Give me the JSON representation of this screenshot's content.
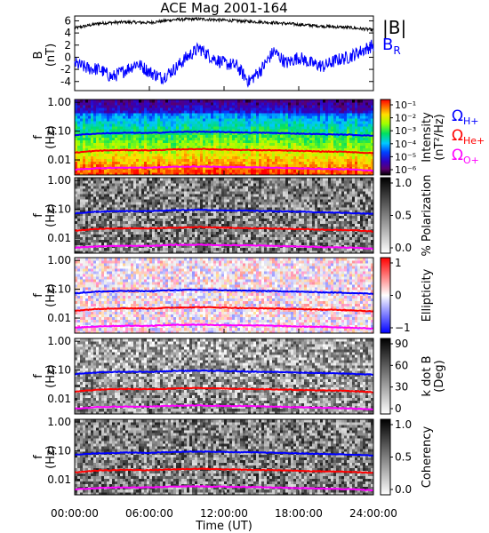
{
  "colors": {
    "B_total": "#000000",
    "B_R": "#0000ff",
    "Omega_H": "#0000ff",
    "Omega_He": "#ff0000",
    "Omega_O": "#ff00ff"
  },
  "chart_data": {
    "type": "multi-panel spectrogram",
    "title": "ACE Mag 2001-164",
    "x_axis": {
      "label": "Time (UT)",
      "ticks": [
        "00:00:00",
        "06:00:00",
        "12:00:00",
        "18:00:00",
        "24:00:00"
      ],
      "range_hours": [
        0,
        24
      ]
    },
    "panels": [
      {
        "id": "b-field",
        "type": "line",
        "ylabel": [
          "B",
          "(nT)"
        ],
        "yticks": [
          "6",
          "4",
          "2",
          "0",
          "-2",
          "-4"
        ],
        "ytick_values": [
          6,
          4,
          2,
          0,
          -2,
          -4
        ],
        "ylim": [
          -5.5,
          6.8
        ],
        "legend": [
          "|B|",
          "BR"
        ],
        "series": [
          {
            "name": "|B|",
            "color": "#000000",
            "x": [
              0,
              2,
              4,
              6,
              8,
              10,
              12,
              14,
              16,
              18,
              20,
              22,
              24
            ],
            "y": [
              4.8,
              5.6,
              5.8,
              5.7,
              6.2,
              6.3,
              6.1,
              5.9,
              5.7,
              5.4,
              5.1,
              4.9,
              4.5
            ]
          },
          {
            "name": "BR",
            "color": "#0000ff",
            "x": [
              0,
              1,
              2,
              3,
              4,
              5,
              6,
              7,
              8,
              9,
              10,
              11,
              12,
              13,
              14,
              15,
              16,
              17,
              18,
              19,
              20,
              21,
              22,
              23,
              24
            ],
            "y": [
              -1,
              -1.8,
              -2,
              -3.3,
              -2.2,
              -1,
              -2.4,
              -3.4,
              -2,
              0,
              1.5,
              0,
              -1,
              -1.4,
              -4,
              -2,
              1,
              -1,
              0,
              -1,
              -1.5,
              -0.5,
              0,
              1,
              2
            ]
          }
        ]
      },
      {
        "id": "intensity",
        "type": "heatmap",
        "ylabel": [
          "f",
          "(Hz)"
        ],
        "yticks": [
          "1.00",
          "0.10",
          "0.01"
        ],
        "colorbar": {
          "label": [
            "Intensity",
            "(nT²/Hz)"
          ],
          "scale": "rainbow",
          "ticks": [
            "10⁻¹",
            "10⁻²",
            "10⁻³",
            "10⁻⁴",
            "10⁻⁵",
            "10⁻⁶"
          ]
        },
        "legend": [
          "ΩH+",
          "ΩHe+",
          "ΩO+"
        ]
      },
      {
        "id": "polarization",
        "type": "heatmap",
        "ylabel": [
          "f",
          "(Hz)"
        ],
        "yticks": [
          "1.00",
          "0.10",
          "0.01"
        ],
        "colorbar": {
          "label": [
            "% Polarization"
          ],
          "scale": "gray",
          "ticks": [
            "1.0",
            "0.5",
            "0.0"
          ]
        }
      },
      {
        "id": "ellipticity",
        "type": "heatmap",
        "ylabel": [
          "f",
          "(Hz)"
        ],
        "yticks": [
          "1.00",
          "0.10",
          "0.01"
        ],
        "colorbar": {
          "label": [
            "Ellipticity"
          ],
          "scale": "bwr",
          "ticks": [
            "1",
            "0",
            "−1"
          ]
        }
      },
      {
        "id": "kdotb",
        "type": "heatmap",
        "ylabel": [
          "f",
          "(Hz)"
        ],
        "yticks": [
          "1.00",
          "0.10",
          "0.01"
        ],
        "colorbar": {
          "label": [
            "k dot B",
            "(Deg)"
          ],
          "scale": "gray",
          "ticks": [
            "90",
            "60",
            "30",
            "0"
          ]
        }
      },
      {
        "id": "coherency",
        "type": "heatmap",
        "ylabel": [
          "f",
          "(Hz)"
        ],
        "yticks": [
          "1.00",
          "0.10",
          "0.01"
        ],
        "colorbar": {
          "label": [
            "Coherency"
          ],
          "scale": "gray",
          "ticks": [
            "1.0",
            "0.5",
            "0.0"
          ]
        }
      }
    ],
    "gyrofrequency_curves_hz": {
      "x": [
        0,
        2,
        4,
        6,
        8,
        10,
        12,
        14,
        16,
        18,
        20,
        22,
        24
      ],
      "Omega_H+": [
        0.073,
        0.083,
        0.087,
        0.086,
        0.093,
        0.095,
        0.092,
        0.089,
        0.086,
        0.082,
        0.078,
        0.075,
        0.069
      ],
      "Omega_He+": [
        0.018,
        0.021,
        0.022,
        0.0215,
        0.023,
        0.024,
        0.023,
        0.022,
        0.0215,
        0.0205,
        0.0195,
        0.019,
        0.017
      ],
      "Omega_O+": [
        0.0046,
        0.0052,
        0.0054,
        0.0054,
        0.0058,
        0.0059,
        0.0057,
        0.0056,
        0.0054,
        0.0051,
        0.0049,
        0.0047,
        0.0043
      ]
    }
  }
}
